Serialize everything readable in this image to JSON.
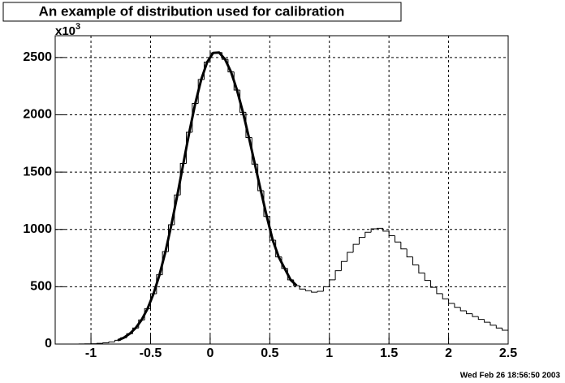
{
  "chart_data": {
    "type": "histogram",
    "title": "An example of distribution used for calibration",
    "y_multiplier": {
      "base": "x10",
      "exponent": "3"
    },
    "timestamp": "Wed Feb 26 18:56:50 2003",
    "bins": [
      -1.3,
      -1.25,
      -1.2,
      -1.15,
      -1.1,
      -1.05,
      -1,
      -0.95,
      -0.9,
      -0.85,
      -0.8,
      -0.75,
      -0.7,
      -0.65,
      -0.6,
      -0.55,
      -0.5,
      -0.45,
      -0.4,
      -0.35,
      -0.3,
      -0.25,
      -0.2,
      -0.15,
      -0.1,
      -0.05,
      0,
      0.05,
      0.1,
      0.15,
      0.2,
      0.25,
      0.3,
      0.35,
      0.4,
      0.45,
      0.5,
      0.55,
      0.6,
      0.65,
      0.7,
      0.75,
      0.8,
      0.85,
      0.9,
      0.95,
      1,
      1.05,
      1.1,
      1.15,
      1.2,
      1.25,
      1.3,
      1.35,
      1.4,
      1.45,
      1.5,
      1.55,
      1.6,
      1.65,
      1.7,
      1.75,
      1.8,
      1.85,
      1.9,
      1.95,
      2,
      2.05,
      2.1,
      2.15,
      2.2,
      2.25,
      2.3,
      2.35,
      2.4,
      2.45,
      2.5
    ],
    "values": [
      0,
      0,
      0,
      0,
      1,
      2,
      3,
      6,
      11,
      19,
      33,
      55,
      90,
      140,
      211,
      309,
      439,
      604,
      806,
      1041,
      1301,
      1575,
      1848,
      2099,
      2308,
      2460,
      2540,
      2543,
      2484,
      2374,
      2216,
      2022,
      1802,
      1570,
      1338,
      1113,
      906,
      760,
      660,
      560,
      510,
      480,
      465,
      452,
      460,
      500,
      560,
      640,
      720,
      800,
      870,
      930,
      975,
      1005,
      1010,
      985,
      945,
      890,
      830,
      760,
      690,
      620,
      555,
      495,
      440,
      395,
      355,
      320,
      290,
      265,
      240,
      215,
      190,
      165,
      140,
      120
    ],
    "color": "#000000",
    "fit": {
      "color": "#000000",
      "x": [
        -0.775,
        -0.725,
        -0.675,
        -0.625,
        -0.575,
        -0.525,
        -0.475,
        -0.425,
        -0.375,
        -0.325,
        -0.275,
        -0.225,
        -0.175,
        -0.125,
        -0.075,
        -0.025,
        0.025,
        0.075,
        0.125,
        0.175,
        0.225,
        0.275,
        0.325,
        0.375,
        0.425,
        0.475,
        0.525,
        0.575,
        0.625,
        0.675,
        0.725
      ],
      "values": [
        33,
        55,
        90,
        140,
        211,
        309,
        439,
        604,
        806,
        1041,
        1301,
        1575,
        1848,
        2099,
        2308,
        2460,
        2540,
        2543,
        2484,
        2374,
        2216,
        2022,
        1802,
        1570,
        1338,
        1113,
        906,
        760,
        660,
        560,
        510
      ]
    },
    "xlim": [
      -1.3,
      2.5
    ],
    "ylim": [
      0,
      2690
    ],
    "xticks": [
      -1,
      -0.5,
      0,
      0.5,
      1,
      1.5,
      2,
      2.5
    ],
    "yticks": [
      0,
      500,
      1000,
      1500,
      2000,
      2500
    ],
    "grid": true
  }
}
